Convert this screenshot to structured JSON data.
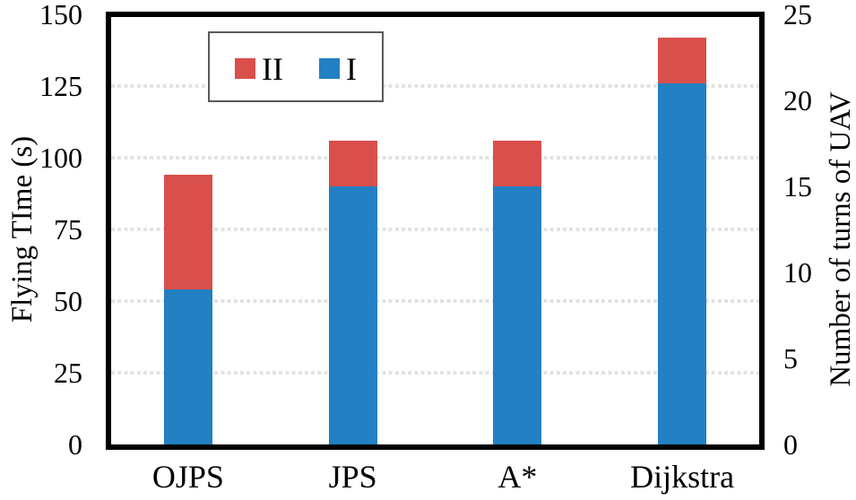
{
  "chart_data": {
    "type": "bar",
    "stacked": true,
    "title": "",
    "categories": [
      "OJPS",
      "JPS",
      "A*",
      "Dijkstra"
    ],
    "series": [
      {
        "name": "I",
        "color": "#2280c3",
        "values": [
          54,
          90,
          90,
          126
        ]
      },
      {
        "name": "II",
        "color": "#d94f4b",
        "values": [
          40,
          16,
          16,
          16
        ]
      }
    ],
    "stack_totals": [
      94,
      106,
      106,
      142
    ],
    "left_axis": {
      "label": "Flying TIme (s)",
      "min": 0,
      "max": 150,
      "ticks": [
        0,
        25,
        50,
        75,
        100,
        125,
        150
      ]
    },
    "right_axis": {
      "label": "Number of turns of UAV",
      "min": 0,
      "max": 25,
      "ticks": [
        0,
        5,
        10,
        15,
        20,
        25
      ],
      "series_I_equivalent_turns": [
        9,
        15,
        15,
        21
      ]
    },
    "gridlines": [
      25,
      50,
      75,
      100,
      125
    ],
    "grid_style": "dotted horizontal light-gray",
    "legend": {
      "position": "top-left-inside",
      "items": [
        {
          "label": "II",
          "color": "#d94f4b"
        },
        {
          "label": "I",
          "color": "#2280c3"
        }
      ]
    }
  },
  "colors": {
    "background": "#ffffff",
    "frame": "#000000",
    "gridline": "#e3e3e3",
    "bar_blue": "#2280c3",
    "bar_red": "#d94f4b",
    "legend_border": "#595959",
    "text": "#000000"
  }
}
